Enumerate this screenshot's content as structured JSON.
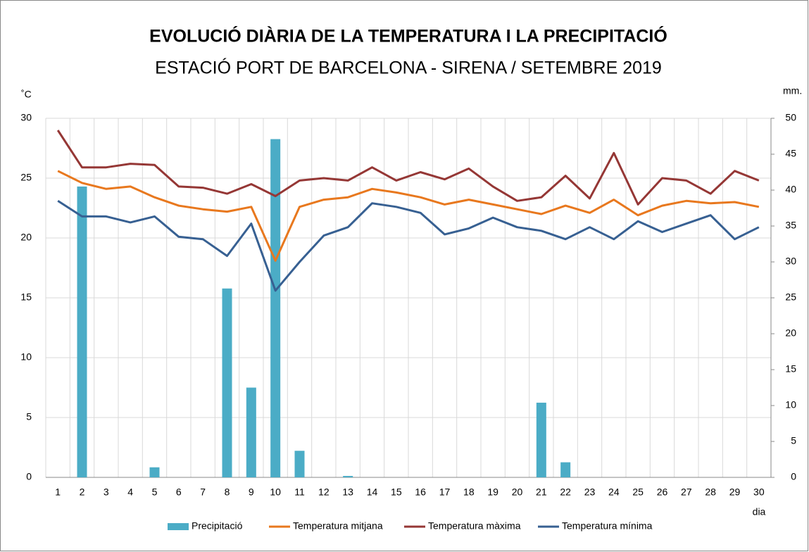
{
  "chart_data": {
    "type": "bar-line",
    "title": "EVOLUCIÓ DIÀRIA DE LA TEMPERATURA I LA PRECIPITACIÓ",
    "subtitle": "ESTACIÓ PORT DE BARCELONA - SIRENA / SETEMBRE  2019",
    "y_label": "˚C",
    "y2_label": "mm.",
    "x_label": "dia",
    "categories": [
      "1",
      "2",
      "3",
      "4",
      "5",
      "6",
      "7",
      "8",
      "9",
      "10",
      "11",
      "12",
      "13",
      "14",
      "15",
      "16",
      "17",
      "18",
      "19",
      "20",
      "21",
      "22",
      "23",
      "24",
      "25",
      "26",
      "27",
      "28",
      "29",
      "30"
    ],
    "ylim": [
      0,
      30
    ],
    "yticks": [
      0,
      5,
      10,
      15,
      20,
      25,
      30
    ],
    "y2lim": [
      0,
      50
    ],
    "y2ticks": [
      0,
      5,
      10,
      15,
      20,
      25,
      30,
      35,
      40,
      45,
      50
    ],
    "grid": true,
    "legend": "bottom",
    "series": [
      {
        "name": "Precipitació",
        "type": "bar",
        "axis": "y2",
        "color": "#4bacc6",
        "values": [
          0,
          40.5,
          0,
          0,
          1.4,
          0,
          0,
          26.3,
          12.5,
          47.1,
          3.7,
          0,
          0.2,
          0,
          0,
          0,
          0,
          0,
          0,
          0,
          10.4,
          2.1,
          0,
          0,
          0,
          0,
          0,
          0,
          0,
          0
        ]
      },
      {
        "name": "Temperatura mitjana",
        "type": "line",
        "color": "#e8781e",
        "values": [
          25.6,
          24.6,
          24.1,
          24.3,
          23.4,
          22.7,
          22.4,
          22.2,
          22.6,
          18.1,
          22.6,
          23.2,
          23.4,
          24.1,
          23.8,
          23.4,
          22.8,
          23.2,
          22.8,
          22.4,
          22.0,
          22.7,
          22.1,
          23.2,
          21.9,
          22.7,
          23.1,
          22.9,
          23.0,
          22.6
        ]
      },
      {
        "name": "Temperatura màxima",
        "type": "line",
        "color": "#953735",
        "values": [
          29.0,
          25.9,
          25.9,
          26.2,
          26.1,
          24.3,
          24.2,
          23.7,
          24.5,
          23.5,
          24.8,
          25.0,
          24.8,
          25.9,
          24.8,
          25.5,
          24.9,
          25.8,
          24.3,
          23.1,
          23.4,
          25.2,
          23.3,
          27.1,
          22.8,
          25.0,
          24.8,
          23.7,
          25.6,
          24.8
        ]
      },
      {
        "name": "Temperatura mínima",
        "type": "line",
        "color": "#376092",
        "values": [
          23.1,
          21.8,
          21.8,
          21.3,
          21.8,
          20.1,
          19.9,
          18.5,
          21.2,
          15.6,
          18.0,
          20.2,
          20.9,
          22.9,
          22.6,
          22.1,
          20.3,
          20.8,
          21.7,
          20.9,
          20.6,
          19.9,
          20.9,
          19.9,
          21.4,
          20.5,
          21.2,
          21.9,
          19.9,
          20.9
        ]
      }
    ]
  }
}
